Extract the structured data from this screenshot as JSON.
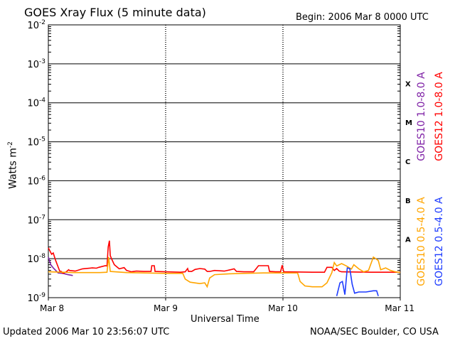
{
  "chart_data": {
    "type": "line",
    "title": "GOES Xray Flux (5 minute data)",
    "begin_label": "Begin:  2006 Mar 8 0000 UTC",
    "ylabel_base": "Watts m",
    "ylabel_exp": "-2",
    "xlabel": "Universal Time",
    "y_scale": "log",
    "ylim": [
      1e-09,
      0.01
    ],
    "y_ticks": [
      {
        "value": 0.01,
        "base": "10",
        "exp": "-2"
      },
      {
        "value": 0.001,
        "base": "10",
        "exp": "-3"
      },
      {
        "value": 0.0001,
        "base": "10",
        "exp": "-4"
      },
      {
        "value": 1e-05,
        "base": "10",
        "exp": "-5"
      },
      {
        "value": 1e-06,
        "base": "10",
        "exp": "-6"
      },
      {
        "value": 1e-07,
        "base": "10",
        "exp": "-7"
      },
      {
        "value": 1e-08,
        "base": "10",
        "exp": "-8"
      },
      {
        "value": 1e-09,
        "base": "10",
        "exp": "-9"
      }
    ],
    "xlim": [
      "2006-03-08T00:00",
      "2006-03-11T00:00"
    ],
    "x_ticks": [
      {
        "value": "2006-03-08T00:00",
        "label": "Mar 8"
      },
      {
        "value": "2006-03-09T00:00",
        "label": "Mar 9"
      },
      {
        "value": "2006-03-10T00:00",
        "label": "Mar 10"
      },
      {
        "value": "2006-03-11T00:00",
        "label": "Mar 11"
      }
    ],
    "flare_classes": [
      {
        "label": "X",
        "low": 0.0001,
        "high": 0.001
      },
      {
        "label": "M",
        "low": 1e-05,
        "high": 0.0001
      },
      {
        "label": "C",
        "low": 1e-06,
        "high": 1e-05
      },
      {
        "label": "B",
        "low": 1e-07,
        "high": 1e-06
      },
      {
        "label": "A",
        "low": 1e-08,
        "high": 1e-07
      }
    ],
    "grid": true,
    "legend_placement": "right",
    "series": [
      {
        "name": "GOES10 1.0-8.0 A",
        "color": "#7f22a6",
        "points": [
          [
            "2006-03-08T00:00",
            1.1e-08
          ],
          [
            "2006-03-08T00:30",
            7e-09
          ],
          [
            "2006-03-08T01:00",
            5.8e-09
          ],
          [
            "2006-03-08T02:00",
            4.3e-09
          ],
          [
            "2006-03-08T03:00",
            4.2e-09
          ],
          [
            "2006-03-08T04:00",
            3.9e-09
          ],
          [
            "2006-03-08T05:00",
            3.7e-09
          ]
        ]
      },
      {
        "name": "GOES12 1.0-8.0 A",
        "color": "#ff0000",
        "points": [
          [
            "2006-03-08T00:00",
            1.9e-08
          ],
          [
            "2006-03-08T00:40",
            1.3e-08
          ],
          [
            "2006-03-08T01:00",
            1.4e-08
          ],
          [
            "2006-03-08T01:30",
            9e-09
          ],
          [
            "2006-03-08T02:20",
            4.8e-09
          ],
          [
            "2006-03-08T02:40",
            4.7e-09
          ],
          [
            "2006-03-08T03:00",
            4.2e-09
          ],
          [
            "2006-03-08T03:40",
            4.6e-09
          ],
          [
            "2006-03-08T04:10",
            5.2e-09
          ],
          [
            "2006-03-08T04:20",
            5e-09
          ],
          [
            "2006-03-08T05:30",
            4.8e-09
          ],
          [
            "2006-03-08T07:00",
            5.5e-09
          ],
          [
            "2006-03-08T09:00",
            5.8e-09
          ],
          [
            "2006-03-08T09:50",
            5.7e-09
          ],
          [
            "2006-03-08T10:20",
            6e-09
          ],
          [
            "2006-03-08T11:40",
            6.6e-09
          ],
          [
            "2006-03-08T12:00",
            6.5e-09
          ],
          [
            "2006-03-08T12:15",
            2e-08
          ],
          [
            "2006-03-08T12:30",
            2.9e-08
          ],
          [
            "2006-03-08T12:40",
            1.2e-08
          ],
          [
            "2006-03-08T13:00",
            9.5e-09
          ],
          [
            "2006-03-08T13:30",
            7e-09
          ],
          [
            "2006-03-08T14:30",
            5.5e-09
          ],
          [
            "2006-03-08T15:30",
            5.9e-09
          ],
          [
            "2006-03-08T16:00",
            5e-09
          ],
          [
            "2006-03-08T17:00",
            4.6e-09
          ],
          [
            "2006-03-08T18:00",
            4.8e-09
          ],
          [
            "2006-03-08T19:30",
            4.7e-09
          ],
          [
            "2006-03-08T21:00",
            4.7e-09
          ],
          [
            "2006-03-08T21:10",
            6.6e-09
          ],
          [
            "2006-03-08T21:40",
            6.6e-09
          ],
          [
            "2006-03-08T21:50",
            4.7e-09
          ],
          [
            "2006-03-09T00:00",
            4.6e-09
          ],
          [
            "2006-03-09T03:00",
            4.5e-09
          ],
          [
            "2006-03-09T04:00",
            4.6e-09
          ],
          [
            "2006-03-09T04:30",
            5.6e-09
          ],
          [
            "2006-03-09T04:40",
            4.7e-09
          ],
          [
            "2006-03-09T05:20",
            4.7e-09
          ],
          [
            "2006-03-09T06:00",
            5.3e-09
          ],
          [
            "2006-03-09T07:00",
            5.6e-09
          ],
          [
            "2006-03-09T08:00",
            5.4e-09
          ],
          [
            "2006-03-09T08:30",
            4.7e-09
          ],
          [
            "2006-03-09T09:00",
            4.7e-09
          ],
          [
            "2006-03-09T10:00",
            5e-09
          ],
          [
            "2006-03-09T12:00",
            4.8e-09
          ],
          [
            "2006-03-09T13:30",
            5.3e-09
          ],
          [
            "2006-03-09T14:00",
            5.5e-09
          ],
          [
            "2006-03-09T14:30",
            4.7e-09
          ],
          [
            "2006-03-09T16:00",
            4.6e-09
          ],
          [
            "2006-03-09T18:00",
            4.6e-09
          ],
          [
            "2006-03-09T19:00",
            6.6e-09
          ],
          [
            "2006-03-09T21:00",
            6.6e-09
          ],
          [
            "2006-03-09T21:15",
            4.7e-09
          ],
          [
            "2006-03-09T22:30",
            4.6e-09
          ],
          [
            "2006-03-09T23:30",
            4.6e-09
          ],
          [
            "2006-03-09T23:50",
            6.8e-09
          ],
          [
            "2006-03-10T00:10",
            4.6e-09
          ],
          [
            "2006-03-10T06:00",
            4.5e-09
          ],
          [
            "2006-03-10T08:30",
            4.5e-09
          ],
          [
            "2006-03-10T09:00",
            6e-09
          ],
          [
            "2006-03-10T10:00",
            6e-09
          ],
          [
            "2006-03-10T10:30",
            5e-09
          ],
          [
            "2006-03-10T11:00",
            5.6e-09
          ],
          [
            "2006-03-10T11:30",
            4.8e-09
          ],
          [
            "2006-03-10T12:00",
            4.6e-09
          ],
          [
            "2006-03-10T18:00",
            4.5e-09
          ],
          [
            "2006-03-11T00:00",
            4.5e-09
          ]
        ]
      },
      {
        "name": "GOES10 0.5-4.0 A",
        "color": "#ffa500",
        "points": [
          [
            "2006-03-08T00:00",
            4.6e-09
          ],
          [
            "2006-03-08T03:00",
            4.5e-09
          ],
          [
            "2006-03-08T05:00",
            4.4e-09
          ],
          [
            "2006-03-08T10:30",
            4.4e-09
          ],
          [
            "2006-03-08T12:00",
            4.5e-09
          ],
          [
            "2006-03-08T12:20",
            1.1e-08
          ],
          [
            "2006-03-08T12:40",
            4.7e-09
          ],
          [
            "2006-03-08T16:00",
            4.4e-09
          ],
          [
            "2006-03-09T00:00",
            4.2e-09
          ],
          [
            "2006-03-09T03:30",
            4.2e-09
          ],
          [
            "2006-03-09T04:00",
            3e-09
          ],
          [
            "2006-03-09T05:00",
            2.5e-09
          ],
          [
            "2006-03-09T07:00",
            2.3e-09
          ],
          [
            "2006-03-09T08:00",
            2.4e-09
          ],
          [
            "2006-03-09T08:30",
            1.9e-09
          ],
          [
            "2006-03-09T09:00",
            3.2e-09
          ],
          [
            "2006-03-09T10:00",
            3.9e-09
          ],
          [
            "2006-03-09T13:00",
            4.1e-09
          ],
          [
            "2006-03-09T16:00",
            4.2e-09
          ],
          [
            "2006-03-09T20:00",
            4.3e-09
          ],
          [
            "2006-03-10T00:00",
            4.3e-09
          ],
          [
            "2006-03-10T03:00",
            4.3e-09
          ],
          [
            "2006-03-10T03:30",
            2.6e-09
          ],
          [
            "2006-03-10T04:30",
            2e-09
          ],
          [
            "2006-03-10T06:00",
            1.9e-09
          ],
          [
            "2006-03-10T08:00",
            1.9e-09
          ],
          [
            "2006-03-10T09:00",
            2.4e-09
          ],
          [
            "2006-03-10T10:00",
            4.4e-09
          ],
          [
            "2006-03-10T10:30",
            8e-09
          ],
          [
            "2006-03-10T11:00",
            6.5e-09
          ],
          [
            "2006-03-10T12:00",
            7.5e-09
          ],
          [
            "2006-03-10T13:00",
            6.5e-09
          ],
          [
            "2006-03-10T14:00",
            5.4e-09
          ],
          [
            "2006-03-10T14:30",
            7e-09
          ],
          [
            "2006-03-10T15:30",
            5.5e-09
          ],
          [
            "2006-03-10T16:30",
            4.6e-09
          ],
          [
            "2006-03-10T17:30",
            5e-09
          ],
          [
            "2006-03-10T18:30",
            1.1e-08
          ],
          [
            "2006-03-10T19:30",
            9e-09
          ],
          [
            "2006-03-10T20:00",
            5.2e-09
          ],
          [
            "2006-03-10T21:00",
            5.8e-09
          ],
          [
            "2006-03-10T22:00",
            5e-09
          ],
          [
            "2006-03-10T23:00",
            4.6e-09
          ],
          [
            "2006-03-11T00:00",
            4.4e-09
          ]
        ]
      },
      {
        "name": "GOES12 0.5-4.0 A",
        "color": "#1e3cff",
        "points": [
          [
            "2006-03-10T11:00",
            1.1e-09
          ],
          [
            "2006-03-10T11:40",
            2.4e-09
          ],
          [
            "2006-03-10T12:10",
            2.6e-09
          ],
          [
            "2006-03-10T12:40",
            1.2e-09
          ],
          [
            "2006-03-10T13:10",
            5.8e-09
          ],
          [
            "2006-03-10T13:40",
            5.6e-09
          ],
          [
            "2006-03-10T14:10",
            2.2e-09
          ],
          [
            "2006-03-10T14:40",
            1.3e-09
          ],
          [
            "2006-03-10T15:30",
            1.4e-09
          ],
          [
            "2006-03-10T17:00",
            1.4e-09
          ],
          [
            "2006-03-10T18:30",
            1.5e-09
          ],
          [
            "2006-03-10T19:10",
            1.5e-09
          ],
          [
            "2006-03-10T19:30",
            1.1e-09
          ]
        ]
      }
    ]
  },
  "footer": {
    "updated": "Updated 2006 Mar 10 23:56:07 UTC",
    "credit": "NOAA/SEC Boulder, CO USA"
  }
}
